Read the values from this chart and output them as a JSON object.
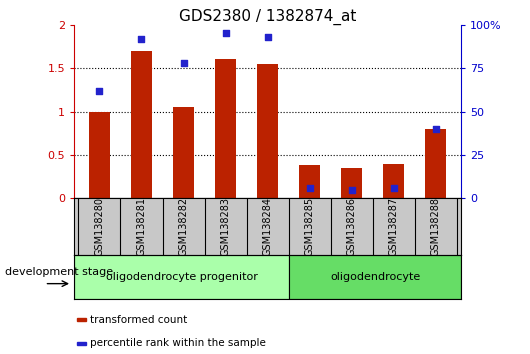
{
  "title": "GDS2380 / 1382874_at",
  "categories": [
    "GSM138280",
    "GSM138281",
    "GSM138282",
    "GSM138283",
    "GSM138284",
    "GSM138285",
    "GSM138286",
    "GSM138287",
    "GSM138288"
  ],
  "transformed_counts": [
    1.0,
    1.7,
    1.05,
    1.6,
    1.55,
    0.38,
    0.35,
    0.39,
    0.8
  ],
  "percentile_ranks": [
    62,
    92,
    78,
    95,
    93,
    6,
    5,
    6,
    40
  ],
  "bar_color": "#bb2200",
  "dot_color": "#2222cc",
  "ylim_left": [
    0,
    2
  ],
  "ylim_right": [
    0,
    100
  ],
  "yticks_left": [
    0,
    0.5,
    1.0,
    1.5,
    2.0
  ],
  "ytick_labels_left": [
    "0",
    "0.5",
    "1",
    "1.5",
    "2"
  ],
  "yticks_right": [
    0,
    25,
    50,
    75,
    100
  ],
  "ytick_labels_right": [
    "0",
    "25",
    "50",
    "75",
    "100%"
  ],
  "groups": [
    {
      "label": "oligodendrocyte progenitor",
      "start": 0,
      "end": 5,
      "color": "#aaffaa"
    },
    {
      "label": "oligodendrocyte",
      "start": 5,
      "end": 9,
      "color": "#66dd66"
    }
  ],
  "xlabel_area": "development stage",
  "legend_items": [
    {
      "label": "transformed count",
      "color": "#bb2200"
    },
    {
      "label": "percentile rank within the sample",
      "color": "#2222cc"
    }
  ],
  "bar_width": 0.5,
  "background_color": "#ffffff",
  "tick_area_bg": "#c8c8c8"
}
